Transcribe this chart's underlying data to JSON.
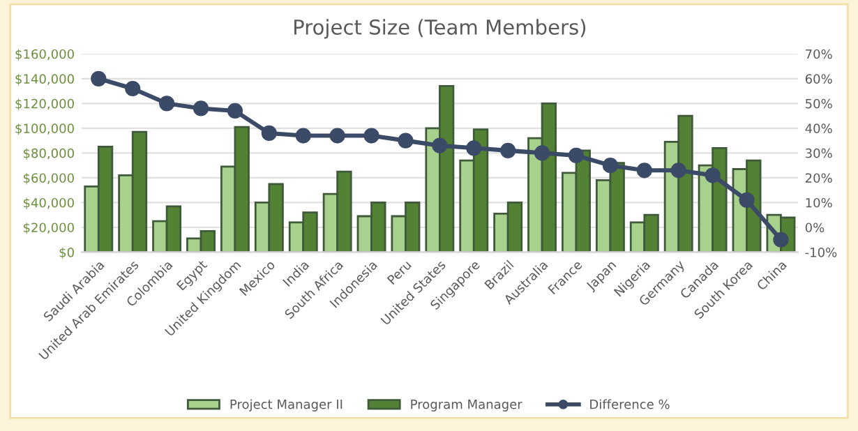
{
  "chart_data": {
    "type": "bar",
    "title": "Project Size (Team Members)",
    "categories": [
      "Saudi Arabia",
      "United Arab Emirates",
      "Colombia",
      "Egypt",
      "United Kingdom",
      "Mexico",
      "India",
      "South Africa",
      "Indonesia",
      "Peru",
      "United States",
      "Singapore",
      "Brazil",
      "Australia",
      "France",
      "Japan",
      "Nigeria",
      "Germany",
      "Canada",
      "South Korea",
      "China"
    ],
    "series": [
      {
        "name": "Project Manager II",
        "color": "#a9d18e",
        "values": [
          53000,
          62000,
          25000,
          11000,
          69000,
          40000,
          24000,
          47000,
          29000,
          29000,
          100000,
          74000,
          31000,
          92000,
          64000,
          58000,
          24000,
          89000,
          70000,
          67000,
          30000
        ]
      },
      {
        "name": "Program Manager",
        "color": "#548235",
        "values": [
          85000,
          97000,
          37000,
          17000,
          101000,
          55000,
          32000,
          65000,
          40000,
          40000,
          134000,
          99000,
          40000,
          120000,
          82000,
          72000,
          30000,
          110000,
          84000,
          74000,
          28000
        ]
      },
      {
        "name": "Difference %",
        "type": "line",
        "axis": "y2",
        "color": "#3b4a66",
        "marker": "circle",
        "values": [
          60,
          56,
          50,
          48,
          47,
          38,
          37,
          37,
          37,
          35,
          33,
          32,
          31,
          30,
          29,
          25,
          23,
          23,
          21,
          11,
          -5
        ]
      }
    ],
    "ylim": [
      0,
      160000
    ],
    "yticks": [
      {
        "value": 0,
        "label": "$0"
      },
      {
        "value": 20000,
        "label": "$20,000"
      },
      {
        "value": 40000,
        "label": "$40,000"
      },
      {
        "value": 60000,
        "label": "$60,000"
      },
      {
        "value": 80000,
        "label": "$80,000"
      },
      {
        "value": 100000,
        "label": "$100,000"
      },
      {
        "value": 120000,
        "label": "$120,000"
      },
      {
        "value": 140000,
        "label": "$140,000"
      },
      {
        "value": 160000,
        "label": "$160,000"
      }
    ],
    "y2lim": [
      -10,
      70
    ],
    "y2ticks": [
      {
        "value": -10,
        "label": "-10%"
      },
      {
        "value": 0,
        "label": "0%"
      },
      {
        "value": 10,
        "label": "10%"
      },
      {
        "value": 20,
        "label": "20%"
      },
      {
        "value": 30,
        "label": "30%"
      },
      {
        "value": 40,
        "label": "40%"
      },
      {
        "value": 50,
        "label": "50%"
      },
      {
        "value": 60,
        "label": "60%"
      },
      {
        "value": 70,
        "label": "70%"
      }
    ],
    "grid": "y",
    "legend": "bottom"
  }
}
